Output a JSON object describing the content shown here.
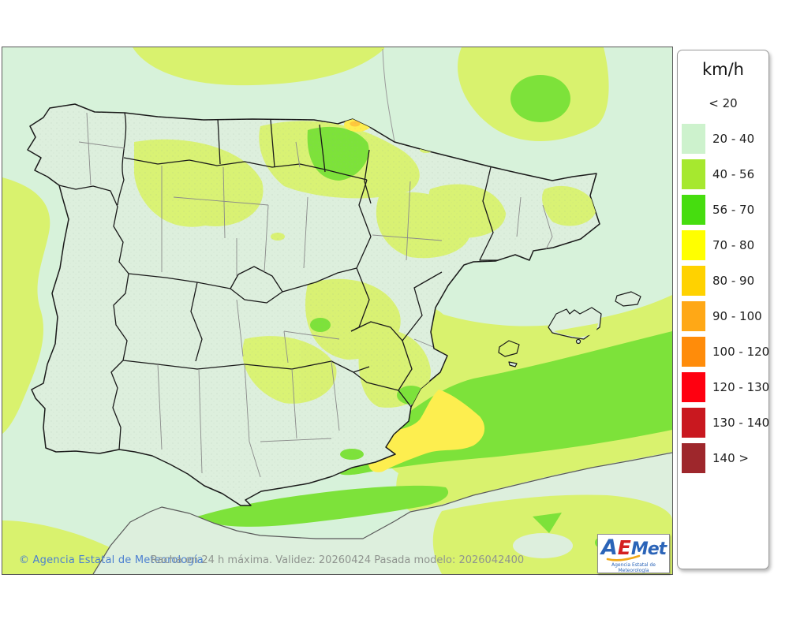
{
  "legend": {
    "title": "km/h",
    "items": [
      {
        "label": "< 20",
        "color": null
      },
      {
        "label": "20 - 40",
        "color": "#cdf2cd"
      },
      {
        "label": "40 - 56",
        "color": "#a6e82f"
      },
      {
        "label": "56 - 70",
        "color": "#46dd0f"
      },
      {
        "label": "70 - 80",
        "color": "#ffff00"
      },
      {
        "label": "80 - 90",
        "color": "#ffd200"
      },
      {
        "label": "90 - 100",
        "color": "#ffa816"
      },
      {
        "label": "100 - 120",
        "color": "#ff8c0a"
      },
      {
        "label": "120 - 130",
        "color": "#ff0010"
      },
      {
        "label": "130 - 140",
        "color": "#c9181f"
      },
      {
        "label": "140 >",
        "color": "#9e272c"
      }
    ]
  },
  "footer": {
    "copyright": "© Agencia Estatal de Meteorología",
    "caption": "Racha en 24 h máxima. Validez: 20260424 Pasada modelo: 2026042400"
  },
  "logo": {
    "part_a": "A",
    "part_e": "E",
    "part_met": "Met",
    "subtitle": "Agencia Estatal de Meteorología"
  },
  "map_colors": {
    "sea_calm": "#d7f2da",
    "land_calm": "#ddefdd",
    "band_40_56": "#d9f26e",
    "band_56_70": "#7de23a",
    "band_70_80": "#fdee4f",
    "band_80_90": "#ffc83c",
    "border_country": "#1a1a1a",
    "border_province": "#8a8a8a"
  }
}
